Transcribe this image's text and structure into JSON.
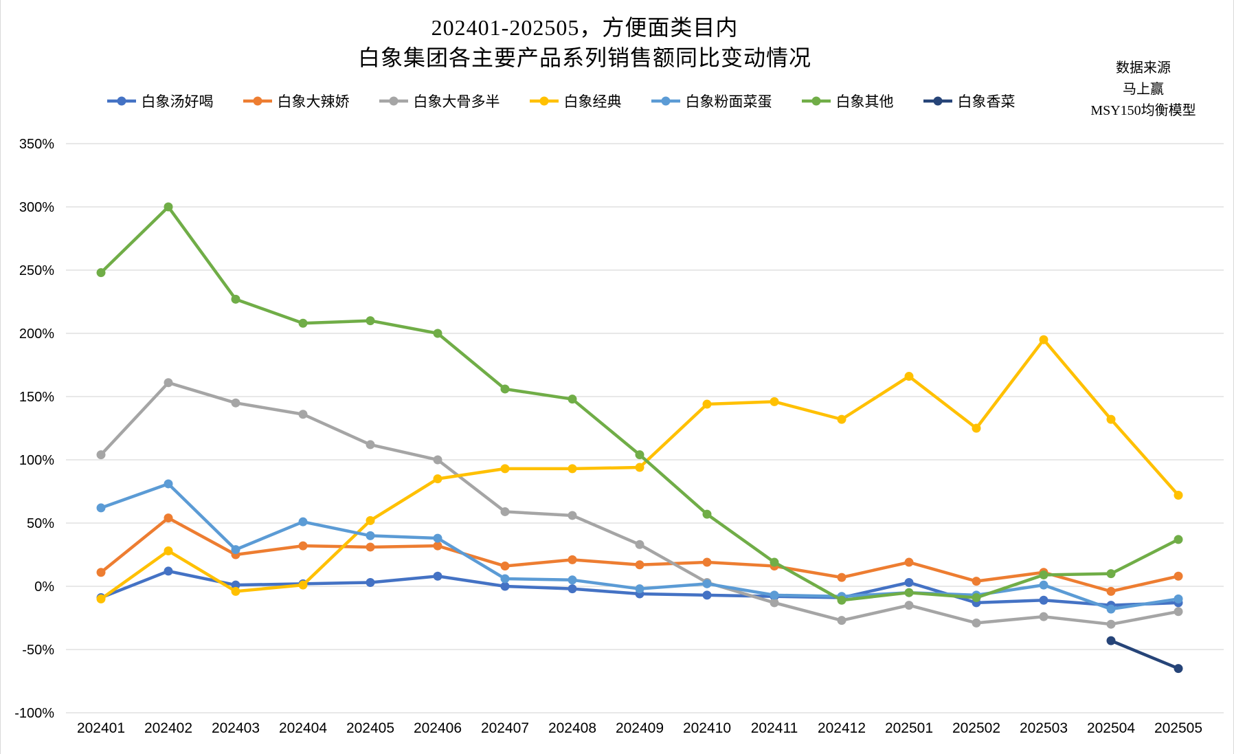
{
  "title": {
    "line1": "202401-202505，方便面类目内",
    "line2": "白象集团各主要产品系列销售额同比变动情况"
  },
  "source_note": {
    "line1": "数据来源",
    "line2": "马上赢",
    "line3": "MSY150均衡模型"
  },
  "chart_data": {
    "type": "line",
    "title": "202401-202505，方便面类目内 白象集团各主要产品系列销售额同比变动情况",
    "categories": [
      "202401",
      "202402",
      "202403",
      "202404",
      "202405",
      "202406",
      "202407",
      "202408",
      "202409",
      "202410",
      "202411",
      "202412",
      "202501",
      "202502",
      "202503",
      "202504",
      "202505"
    ],
    "series": [
      {
        "name": "白象汤好喝",
        "color": "#4472C4",
        "values": [
          -9,
          12,
          1,
          2,
          3,
          8,
          0,
          -2,
          -6,
          -7,
          -8,
          -9,
          3,
          -13,
          -11,
          -15,
          -13
        ]
      },
      {
        "name": "白象大辣娇",
        "color": "#ED7D31",
        "values": [
          11,
          54,
          25,
          32,
          31,
          32,
          16,
          21,
          17,
          19,
          16,
          7,
          19,
          4,
          11,
          -4,
          8
        ]
      },
      {
        "name": "白象大骨多半",
        "color": "#A5A5A5",
        "values": [
          104,
          161,
          145,
          136,
          112,
          100,
          59,
          56,
          33,
          3,
          -13,
          -27,
          -15,
          -29,
          -24,
          -30,
          -20
        ]
      },
      {
        "name": "白象经典",
        "color": "#FFC000",
        "values": [
          -10,
          28,
          -4,
          1,
          52,
          85,
          93,
          93,
          94,
          144,
          146,
          132,
          166,
          125,
          195,
          132,
          72
        ]
      },
      {
        "name": "白象粉面菜蛋",
        "color": "#5B9BD5",
        "values": [
          62,
          81,
          29,
          51,
          40,
          38,
          6,
          5,
          -2,
          2,
          -7,
          -8,
          -5,
          -7,
          1,
          -18,
          -10
        ]
      },
      {
        "name": "白象其他",
        "color": "#70AD47",
        "values": [
          248,
          300,
          227,
          208,
          210,
          200,
          156,
          148,
          104,
          57,
          19,
          -11,
          -5,
          -9,
          9,
          10,
          37
        ]
      },
      {
        "name": "白象香菜",
        "color": "#264478",
        "values": [
          null,
          null,
          null,
          null,
          null,
          null,
          null,
          null,
          null,
          null,
          null,
          null,
          null,
          null,
          null,
          -43,
          -65
        ]
      }
    ],
    "ylim": [
      -100,
      350
    ],
    "ytick_step": 50,
    "ytick_labels": [
      "350%",
      "300%",
      "250%",
      "200%",
      "150%",
      "100%",
      "50%",
      "0%",
      "-50%",
      "-100%"
    ],
    "grid": "horizontal-only",
    "gridline_color": "#D9D9D9",
    "legend_position": "top",
    "xlabel": "",
    "ylabel": ""
  }
}
